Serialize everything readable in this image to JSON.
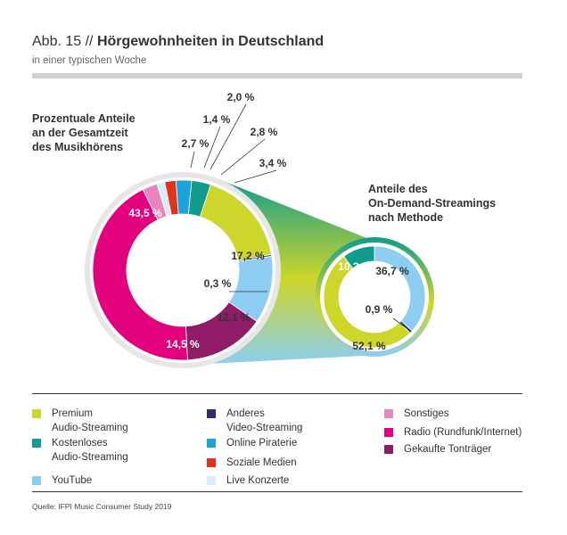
{
  "header": {
    "fig_label": "Abb. 15 //",
    "title": "Hörgewohnheiten in Deutschland",
    "subtitle": "in einer typischen Woche"
  },
  "colors": {
    "premium": "#cdd62a",
    "kostenlos": "#119b8d",
    "youtube": "#8ccdf1",
    "anderes_video": "#2b2f6b",
    "piraterie": "#1ea2dd",
    "soziale": "#e2321b",
    "live": "#d6eef9",
    "sonstiges": "#e985bd",
    "radio": "#e3007d",
    "gekauft": "#8e1c66"
  },
  "chart_data": [
    {
      "type": "pie",
      "title": "Prozentuale Anteile an der Gesamtzeit des Musikhörens",
      "slices": [
        {
          "key": "premium",
          "label": "17,2 %",
          "value": 17.2
        },
        {
          "key": "anderes_video",
          "label": "0,3 %",
          "value": 0.3
        },
        {
          "key": "youtube",
          "label": "12,1 %",
          "value": 12.1
        },
        {
          "key": "gekauft",
          "label": "14,5 %",
          "value": 14.5
        },
        {
          "key": "radio",
          "label": "43,5 %",
          "value": 43.5
        },
        {
          "key": "sonstiges",
          "label": "2,7 %",
          "value": 2.7
        },
        {
          "key": "live",
          "label": "1,4 %",
          "value": 1.4
        },
        {
          "key": "soziale",
          "label": "2,0 %",
          "value": 2.0
        },
        {
          "key": "piraterie",
          "label": "2,8 %",
          "value": 2.8
        },
        {
          "key": "kostenlos",
          "label": "3,4 %",
          "value": 3.4
        }
      ]
    },
    {
      "type": "pie",
      "title": "Anteile des On-Demand-Streamings nach Methode",
      "slices": [
        {
          "key": "youtube",
          "label": "36,7 %",
          "value": 36.7
        },
        {
          "key": "anderes_video",
          "label": "0,9 %",
          "value": 0.9
        },
        {
          "key": "premium",
          "label": "52,1 %",
          "value": 52.1
        },
        {
          "key": "kostenlos",
          "label": "10,3 %",
          "value": 10.3
        }
      ]
    }
  ],
  "headlines": {
    "left": "Prozentuale Anteile\nan der Gesamtzeit\ndes Musikhörens",
    "right": "Anteile des\nOn-Demand-Streamings\nnach Methode"
  },
  "legend": [
    {
      "key": "premium",
      "label": "Premium\nAudio-Streaming"
    },
    {
      "key": "kostenlos",
      "label": "Kostenloses\nAudio-Streaming"
    },
    {
      "key": "youtube",
      "label": "YouTube"
    },
    {
      "key": "anderes_video",
      "label": "Anderes\nVideo-Streaming"
    },
    {
      "key": "piraterie",
      "label": "Online Piraterie"
    },
    {
      "key": "soziale",
      "label": "Soziale Medien"
    },
    {
      "key": "live",
      "label": "Live Konzerte"
    },
    {
      "key": "sonstiges",
      "label": "Sonstiges"
    },
    {
      "key": "radio",
      "label": "Radio (Rundfunk/Internet)"
    },
    {
      "key": "gekauft",
      "label": "Gekaufte Tonträger"
    }
  ],
  "source": "Quelle: IFPI Music Consumer Study 2019"
}
